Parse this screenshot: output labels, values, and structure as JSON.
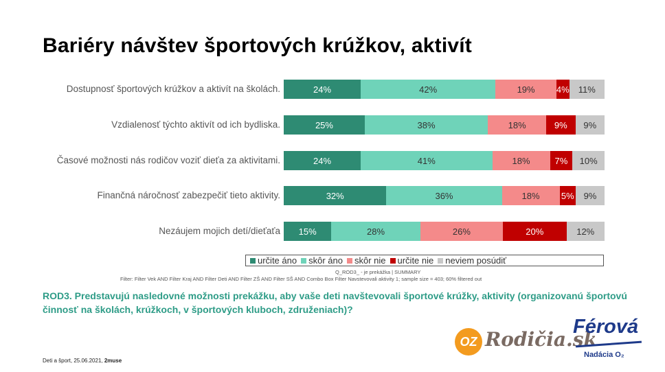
{
  "title": "Bariéry návštev športových krúžkov, aktivít",
  "chart_data": {
    "type": "bar",
    "orientation": "horizontal",
    "stacked": true,
    "categories": [
      "Dostupnosť športových krúžkov a aktivít na školách.",
      "Vzdialenosť týchto aktivít od ich bydliska.",
      "Časové možnosti nás rodičov voziť dieťa za aktivitami.",
      "Finančná náročnosť zabezpečiť tieto aktivity.",
      "Nezáujem mojich detí/dieťaťa"
    ],
    "series": [
      {
        "name": "určite áno",
        "values": [
          24,
          25,
          24,
          32,
          15
        ],
        "labels": [
          "24%",
          "25%",
          "24%",
          "32%",
          "15%"
        ],
        "color": "#2e8b73"
      },
      {
        "name": "skôr áno",
        "values": [
          42,
          38,
          41,
          36,
          28
        ],
        "labels": [
          "42%",
          "38%",
          "41%",
          "36%",
          "28%"
        ],
        "color": "#6fd3b9"
      },
      {
        "name": "skôr nie",
        "values": [
          19,
          18,
          18,
          18,
          26
        ],
        "labels": [
          "19%",
          "18%",
          "18%",
          "18%",
          "26%"
        ],
        "color": "#f48a8a"
      },
      {
        "name": "určite nie",
        "values": [
          4,
          9,
          7,
          5,
          20
        ],
        "labels": [
          "4%",
          "9%",
          "7%",
          "5%",
          "20%"
        ],
        "color": "#c00000"
      },
      {
        "name": "neviem posúdiť",
        "values": [
          11,
          9,
          10,
          9,
          12
        ],
        "labels": [
          "11%",
          "9%",
          "10%",
          "9%",
          "12%"
        ],
        "color": "#c8c8c8"
      }
    ],
    "legend_position": "bottom"
  },
  "notes": {
    "source": "Q_ROD3_ - je prekážka | SUMMARY",
    "filter": "Filter: Filter Vek AND Filter Kraj AND Filter Deti AND Filter ZŠ AND Filter SŠ AND Combo Box Filter Navstevovali aktivity 1; sample size = 403; 60% filtered out"
  },
  "question": "ROD3. Predstavujú nasledovné možnosti prekážku, aby vaše deti navštevovali športové krúžky, aktivity (organizovanú športovú činnosť na školách, krúžkoch, v športových kluboch, združeniach)?",
  "footer": {
    "text": "Deti a šport, 25.06.2021, ",
    "brand": "2muse"
  },
  "logos": {
    "oz": "OZ",
    "rodicia": "Rodičia.sk",
    "ferova": "Férová",
    "nadacia": "Nadácia O₂"
  }
}
